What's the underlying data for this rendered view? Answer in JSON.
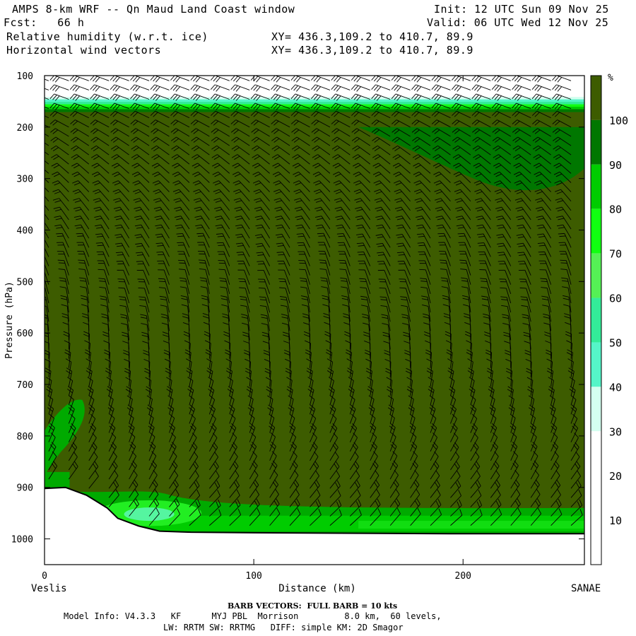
{
  "header": {
    "line1_left": "AMPS 8-km WRF -- Qn Maud Land Coast window",
    "line2_left": "Fcst:   66 h",
    "line3_left": "Relative humidity (w.r.t. ice)",
    "line4_left": "Horizontal wind vectors",
    "line1_right": "Init: 12 UTC Sun 09 Nov 25",
    "line2_right": "Valid: 06 UTC Wed 12 Nov 25",
    "line3_mid": "XY= 436.3,109.2 to 410.7, 89.9",
    "line4_mid": "XY= 436.3,109.2 to 410.7, 89.9"
  },
  "footer": {
    "barb_note": "BARB VECTORS:  FULL BARB = 10 kts",
    "model_info": "Model Info: V4.3.3   KF      MYJ PBL  Morrison         8.0 km,  60 levels,",
    "model_info2": "LW: RRTM SW: RRTMG   DIFF: simple KM: 2D Smagor"
  },
  "chart_data": {
    "type": "heatmap",
    "title": "Relative humidity (w.r.t. ice)",
    "xlabel": "Distance (km)",
    "ylabel": "Pressure (hPa)",
    "xlim": [
      0,
      258
    ],
    "ylim": [
      1050,
      100
    ],
    "x_ticks": [
      0,
      100,
      200
    ],
    "y_ticks": [
      100,
      200,
      300,
      400,
      500,
      600,
      700,
      800,
      900,
      1000
    ],
    "x_end_labels": {
      "left": "Veslis",
      "right": "SANAE"
    },
    "colorbar": {
      "unit": "%",
      "levels": [
        10,
        20,
        30,
        40,
        50,
        60,
        70,
        80,
        90,
        100
      ],
      "colors": [
        "#ffffff",
        "#ffffff",
        "#ffffff",
        "#d4fff0",
        "#55f5c8",
        "#33ec99",
        "#55f055",
        "#11ff11",
        "#00cc00",
        "#007700",
        "#3d5c00"
      ]
    },
    "terrain_profile": [
      [
        0,
        902
      ],
      [
        10,
        900
      ],
      [
        20,
        915
      ],
      [
        30,
        940
      ],
      [
        35,
        960
      ],
      [
        45,
        975
      ],
      [
        55,
        985
      ],
      [
        70,
        987
      ],
      [
        100,
        988
      ],
      [
        150,
        989
      ],
      [
        200,
        990
      ],
      [
        258,
        990
      ]
    ],
    "fields": {
      "background_rh_percent": 100,
      "dry_layer_above_hpa": 155,
      "moist_band_hpa": [
        155,
        175
      ],
      "upper_right_pocket": {
        "x_range_km": [
          150,
          258
        ],
        "p_range_hpa": [
          200,
          330
        ],
        "rh_percent": 95
      },
      "low_level_band": {
        "p_range_hpa": [
          940,
          990
        ],
        "rh_percent": [
          75,
          95
        ]
      },
      "left_plume": {
        "x_range_km": [
          0,
          20
        ],
        "p_range_hpa": [
          730,
          900
        ],
        "rh_percent": 95
      }
    }
  }
}
